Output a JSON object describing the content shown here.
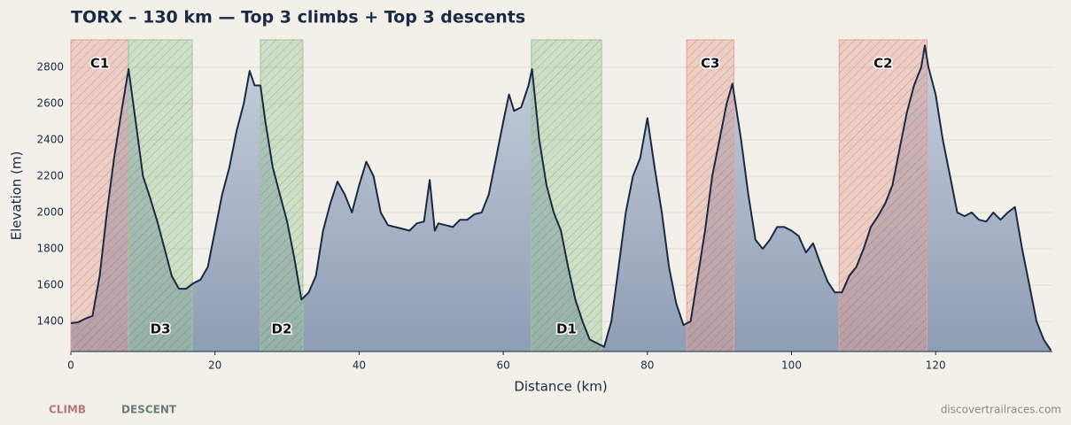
{
  "chart_data": {
    "type": "area",
    "title": "TORX – 130 km — Top 3 climbs + Top 3 descents",
    "x_label": "Distance (km)",
    "y_label": "Elevation (m)",
    "source": "discovertrailraces.com",
    "xlim": [
      0,
      136.2
    ],
    "ylim": [
      1234,
      2951
    ],
    "xticks": [
      0,
      20,
      40,
      60,
      80,
      100,
      120
    ],
    "yticks": [
      1400,
      1600,
      1800,
      2000,
      2200,
      2400,
      2600,
      2800
    ],
    "grid": true,
    "line_color": "#1b2a44",
    "fill_colors": [
      "#c6d0dc",
      "#8f9db4"
    ],
    "legend": [
      {
        "name": "CLIMB",
        "color": "#b07a78"
      },
      {
        "name": "DESCENT",
        "color": "#6a7e78"
      }
    ],
    "zone_colors": {
      "climb": "#e8a294",
      "descent": "#9fc99a"
    },
    "zones": [
      {
        "label": "C1",
        "kind": "climb",
        "start": 0,
        "end": 8
      },
      {
        "label": "D3",
        "kind": "descent",
        "start": 8,
        "end": 16.85
      },
      {
        "label": "D2",
        "kind": "descent",
        "start": 26.3,
        "end": 32.2
      },
      {
        "label": "D1",
        "kind": "descent",
        "start": 63.9,
        "end": 73.65
      },
      {
        "label": "C3",
        "kind": "climb",
        "start": 85.45,
        "end": 92
      },
      {
        "label": "C2",
        "kind": "climb",
        "start": 106.6,
        "end": 118.8
      }
    ],
    "x": [
      0,
      1,
      2,
      3,
      4,
      5,
      6,
      7,
      8,
      9,
      10,
      11,
      12,
      13,
      14,
      15,
      16,
      17,
      18,
      19,
      20,
      21,
      22,
      23,
      24,
      24.8,
      25.5,
      26.3,
      27,
      28,
      29,
      30,
      31,
      32,
      33,
      34,
      35,
      36,
      37,
      38,
      39,
      40,
      41,
      42,
      43,
      44,
      45,
      46,
      47,
      48,
      49,
      49.8,
      50.5,
      51,
      52,
      53,
      54,
      55,
      56,
      57,
      58,
      59,
      60,
      60.8,
      61.5,
      62.5,
      63.5,
      64,
      65,
      66,
      67,
      68,
      69,
      70,
      71,
      72,
      73,
      74,
      75,
      76,
      77,
      78,
      79,
      80,
      81,
      82,
      83,
      84,
      85,
      86,
      87,
      88,
      89,
      90,
      91,
      91.8,
      93,
      94,
      95,
      96,
      97,
      98,
      99,
      100,
      101,
      102,
      103,
      104,
      105,
      106,
      107,
      108,
      109,
      110,
      111,
      112,
      113,
      114,
      115,
      116,
      117,
      118,
      118.5,
      119,
      120,
      121,
      122,
      123,
      124,
      125,
      126,
      127,
      128,
      129,
      130,
      131,
      132,
      133,
      134,
      135,
      136
    ],
    "values": [
      1390,
      1395,
      1415,
      1430,
      1650,
      2000,
      2300,
      2550,
      2790,
      2500,
      2200,
      2080,
      1950,
      1800,
      1650,
      1580,
      1580,
      1610,
      1630,
      1700,
      1900,
      2100,
      2250,
      2450,
      2600,
      2780,
      2700,
      2700,
      2500,
      2250,
      2100,
      1950,
      1750,
      1520,
      1560,
      1650,
      1900,
      2050,
      2170,
      2100,
      2000,
      2150,
      2280,
      2200,
      2000,
      1930,
      1920,
      1910,
      1900,
      1940,
      1950,
      2180,
      1900,
      1940,
      1930,
      1920,
      1960,
      1960,
      1990,
      2000,
      2100,
      2300,
      2500,
      2650,
      2560,
      2580,
      2700,
      2790,
      2400,
      2150,
      2000,
      1900,
      1700,
      1520,
      1400,
      1300,
      1280,
      1260,
      1400,
      1700,
      2000,
      2200,
      2300,
      2520,
      2250,
      2000,
      1700,
      1500,
      1380,
      1400,
      1650,
      1900,
      2200,
      2400,
      2600,
      2710,
      2400,
      2100,
      1850,
      1800,
      1850,
      1920,
      1920,
      1900,
      1870,
      1780,
      1830,
      1720,
      1620,
      1560,
      1560,
      1650,
      1700,
      1800,
      1920,
      1980,
      2050,
      2150,
      2350,
      2550,
      2700,
      2800,
      2920,
      2800,
      2650,
      2400,
      2200,
      2000,
      1980,
      2000,
      1960,
      1950,
      2000,
      1960,
      2000,
      2030,
      1800,
      1600,
      1400,
      1300,
      1240
    ]
  }
}
